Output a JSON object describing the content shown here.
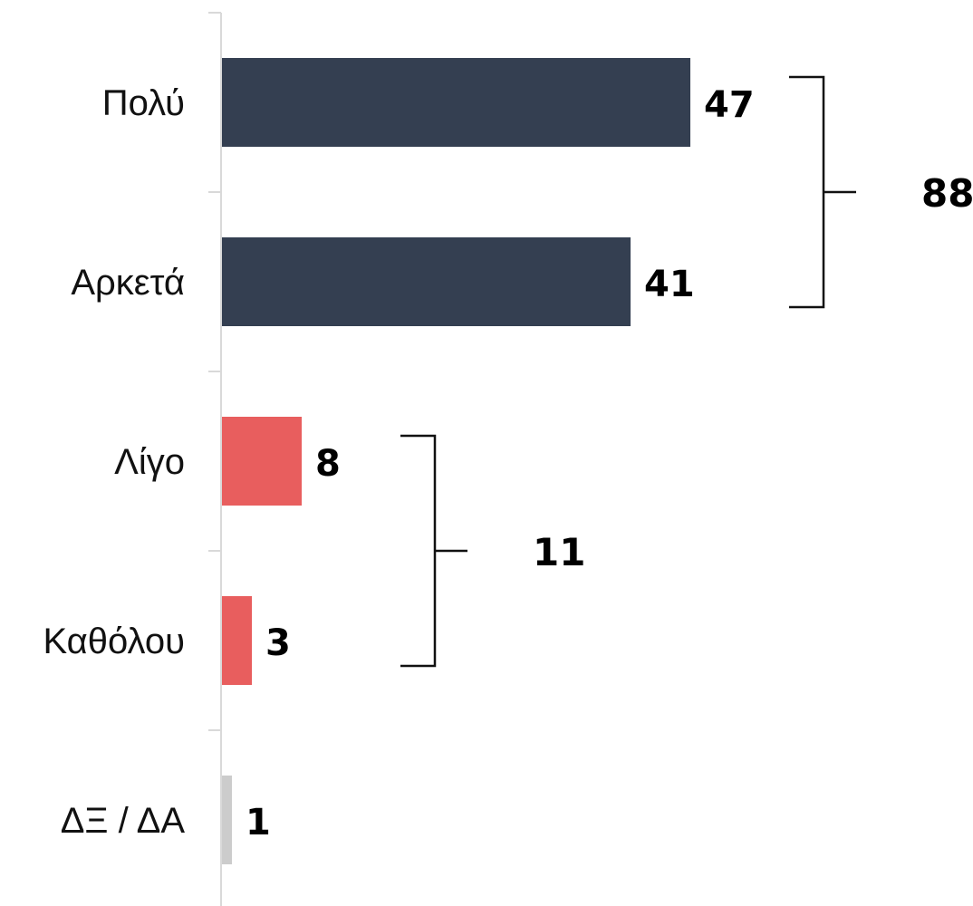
{
  "chart_data": {
    "type": "bar",
    "orientation": "horizontal",
    "categories": [
      "Πολύ",
      "Αρκετά",
      "Λίγο",
      "Καθόλου",
      "ΔΞ / ΔΑ"
    ],
    "values": [
      47,
      41,
      8,
      3,
      1
    ],
    "bar_colors": [
      "#343f51",
      "#343f51",
      "#e85e5e",
      "#e85e5e",
      "#cccccc"
    ],
    "value_labels": [
      "47",
      "41",
      "8",
      "3",
      "1"
    ],
    "groups": [
      {
        "categories": [
          "Πολύ",
          "Αρκετά"
        ],
        "total": 88,
        "label": "88"
      },
      {
        "categories": [
          "Λίγο",
          "Καθόλου"
        ],
        "total": 11,
        "label": "11"
      }
    ],
    "title": "",
    "xlabel": "",
    "ylabel": "",
    "xlim": [
      0,
      47
    ],
    "grid": false,
    "axis_color": "#d9d9d9"
  }
}
